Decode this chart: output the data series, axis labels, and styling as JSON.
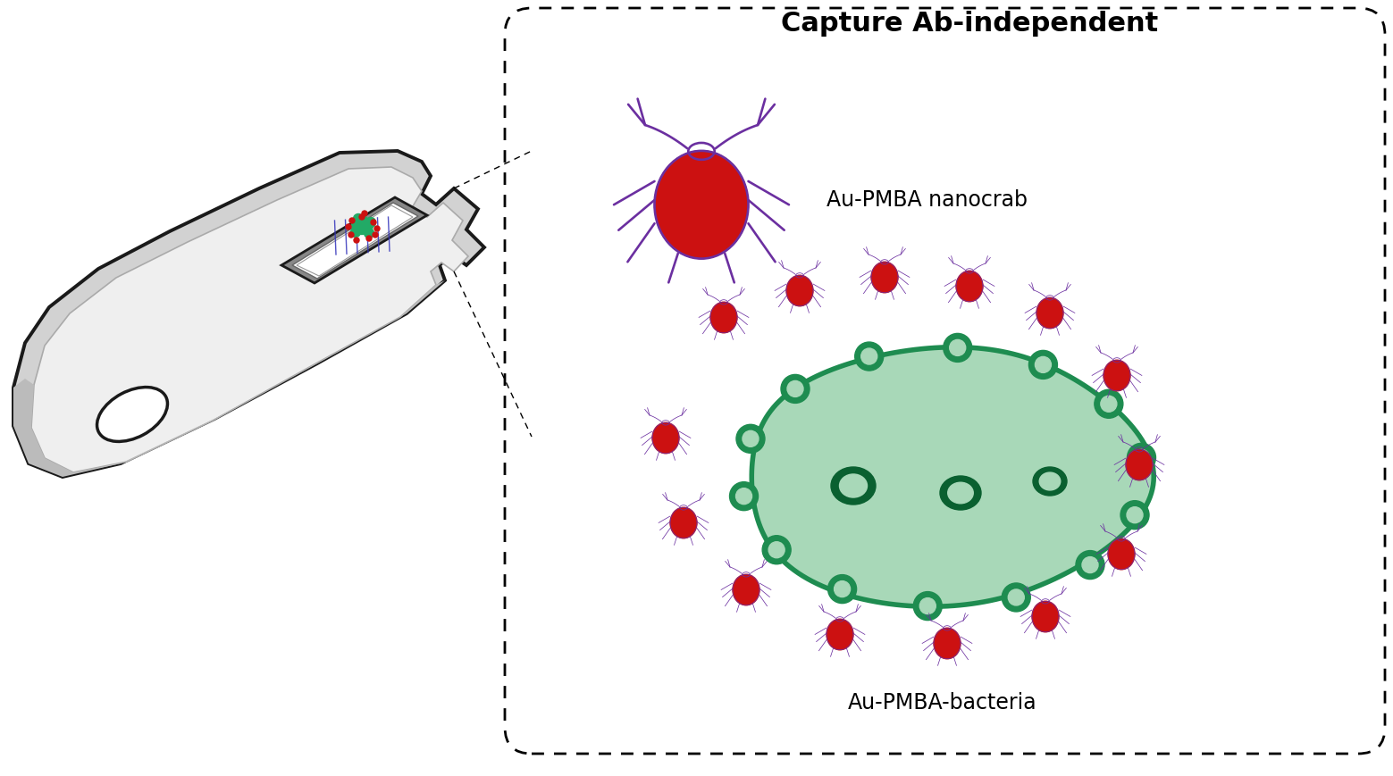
{
  "title": "Capture Ab-independent",
  "label_nanocrab": "Au-PMBA nanocrab",
  "label_bacteria": "Au-PMBA-bacteria",
  "bg_color": "#ffffff",
  "title_fontsize": 22,
  "label_fontsize": 17,
  "purple": "#6B2FA0",
  "red": "#CC1111",
  "green_body": "#A8D8B8",
  "green_outline": "#1E8C50",
  "dark_green": "#0A6030",
  "dark_gray": "#1A1A1A",
  "device_outer": "#C8C8C8",
  "device_inner": "#E8E8E8"
}
